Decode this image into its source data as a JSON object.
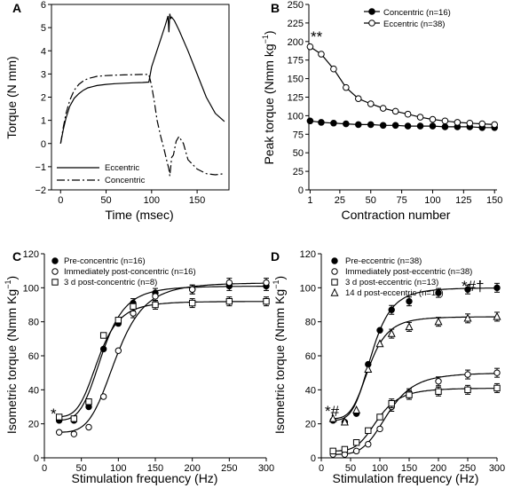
{
  "chart_data": [
    {
      "panel": "A",
      "type": "line",
      "xlabel": "Time (msec)",
      "ylabel": "Torque (N mm)",
      "xlim": [
        -10,
        185
      ],
      "ylim": [
        -2,
        6
      ],
      "xticks": [
        0,
        50,
        100,
        150
      ],
      "yticks": [
        -2,
        -1,
        0,
        1,
        2,
        3,
        4,
        5,
        6
      ],
      "legend_position": "bottom-left",
      "series": [
        {
          "name": "Eccentric",
          "style": "solid",
          "x": [
            0,
            3,
            6,
            10,
            15,
            20,
            25,
            30,
            35,
            40,
            50,
            60,
            70,
            80,
            90,
            97,
            100,
            105,
            110,
            115,
            118,
            119,
            120,
            121,
            122,
            125,
            130,
            140,
            150,
            160,
            170,
            180
          ],
          "y": [
            0,
            0.6,
            1.1,
            1.6,
            1.95,
            2.15,
            2.3,
            2.4,
            2.45,
            2.5,
            2.55,
            2.58,
            2.6,
            2.62,
            2.63,
            2.65,
            3.3,
            3.9,
            4.5,
            5.1,
            5.5,
            4.8,
            5.6,
            5.4,
            5.45,
            5.3,
            4.9,
            4.0,
            3.0,
            2.0,
            1.3,
            0.95
          ]
        },
        {
          "name": "Concentric",
          "style": "dashdot",
          "x": [
            0,
            3,
            6,
            10,
            15,
            20,
            25,
            30,
            35,
            40,
            50,
            60,
            70,
            80,
            90,
            97,
            100,
            103,
            106,
            110,
            114,
            117,
            119,
            120,
            121,
            122,
            124,
            127,
            130,
            135,
            140,
            150,
            160,
            170,
            180
          ],
          "y": [
            0,
            0.7,
            1.3,
            1.85,
            2.3,
            2.55,
            2.7,
            2.8,
            2.85,
            2.9,
            2.93,
            2.95,
            2.96,
            2.97,
            2.98,
            2.98,
            2.5,
            1.8,
            1.0,
            0.3,
            -0.3,
            -0.8,
            -1.1,
            -1.4,
            -1.0,
            -0.6,
            -0.5,
            0.1,
            0.3,
            0.0,
            -0.7,
            -1.1,
            -1.3,
            -1.35,
            -1.3
          ]
        }
      ]
    },
    {
      "panel": "B",
      "type": "line",
      "xlabel": "Contraction number",
      "ylabel": "Peak torque (Nmm kg",
      "ylabel_sup": "−1",
      "ylabel_end": ")",
      "xlim": [
        0,
        152
      ],
      "ylim": [
        0,
        250
      ],
      "xticks": [
        1,
        25,
        50,
        75,
        100,
        125,
        150
      ],
      "yticks": [
        0,
        25,
        50,
        75,
        100,
        125,
        150,
        175,
        200,
        225,
        250
      ],
      "legend_position": "top-right",
      "annotation": "**",
      "series": [
        {
          "name": "Concentric (n=16)",
          "marker": "filled-circle",
          "x": [
            1,
            10,
            20,
            30,
            40,
            50,
            60,
            70,
            80,
            90,
            100,
            110,
            120,
            130,
            140,
            150
          ],
          "y": [
            93,
            91,
            90,
            89,
            88,
            88,
            87,
            87,
            86,
            86,
            86,
            85,
            85,
            85,
            84,
            84
          ]
        },
        {
          "name": "Eccentric (n=38)",
          "marker": "open-circle",
          "x": [
            1,
            10,
            20,
            30,
            40,
            50,
            60,
            70,
            80,
            90,
            100,
            110,
            120,
            130,
            140,
            150
          ],
          "y": [
            193,
            183,
            163,
            138,
            123,
            116,
            110,
            106,
            102,
            98,
            95,
            93,
            91,
            90,
            89,
            88
          ]
        }
      ]
    },
    {
      "panel": "C",
      "type": "scatter",
      "xlabel": "Stimulation frequency (Hz)",
      "ylabel": "Isometric torque (Nmm Kg",
      "ylabel_sup": "−1",
      "ylabel_end": ")",
      "xlim": [
        0,
        300
      ],
      "ylim": [
        0,
        120
      ],
      "xticks": [
        0,
        50,
        100,
        150,
        200,
        250,
        300
      ],
      "yticks": [
        0,
        20,
        40,
        60,
        80,
        100,
        120
      ],
      "legend_position": "top-left",
      "annotation": "*",
      "series": [
        {
          "name": "Pre-concentric (n=16)",
          "marker": "filled-circle",
          "x": [
            20,
            40,
            60,
            80,
            100,
            120,
            150,
            200,
            250,
            300
          ],
          "y": [
            22,
            22,
            30,
            64,
            79,
            91,
            97,
            99,
            101,
            101
          ]
        },
        {
          "name": "Immediately post-concentric (n=16)",
          "marker": "open-circle",
          "x": [
            20,
            40,
            60,
            80,
            100,
            120,
            150,
            200,
            250,
            300
          ],
          "y": [
            15,
            14,
            18,
            36,
            63,
            85,
            95,
            99,
            103,
            103
          ]
        },
        {
          "name": "3 d post-concentric (n=8)",
          "marker": "open-square",
          "x": [
            20,
            40,
            60,
            80,
            100,
            120,
            150,
            200,
            250,
            300
          ],
          "y": [
            24,
            23,
            33,
            72,
            81,
            89,
            90,
            91,
            92,
            92
          ]
        }
      ]
    },
    {
      "panel": "D",
      "type": "scatter",
      "xlabel": "Stimulation frequency (Hz)",
      "ylabel": "Isometric torque (Nmm Kg",
      "ylabel_sup": "−1",
      "ylabel_end": ")",
      "xlim": [
        0,
        300
      ],
      "ylim": [
        0,
        120
      ],
      "xticks": [
        0,
        50,
        100,
        150,
        200,
        250,
        300
      ],
      "yticks": [
        0,
        20,
        40,
        60,
        80,
        100,
        120
      ],
      "legend_position": "top-left",
      "annotation_low": "*#",
      "annotation_high": "*#†",
      "series": [
        {
          "name": "Pre-eccentric (n=38)",
          "marker": "filled-circle",
          "x": [
            20,
            40,
            60,
            80,
            100,
            120,
            150,
            200,
            250,
            300
          ],
          "y": [
            22,
            21,
            26,
            55,
            75,
            87,
            92,
            97,
            99,
            100
          ]
        },
        {
          "name": "Immediately post-eccentric (n=38)",
          "marker": "open-circle",
          "x": [
            20,
            40,
            60,
            80,
            100,
            120,
            150,
            200,
            250,
            300
          ],
          "y": [
            2,
            2,
            4,
            8,
            17,
            30,
            38,
            45,
            49,
            50
          ]
        },
        {
          "name": "3 d post-eccentric (n=13)",
          "marker": "open-square",
          "x": [
            20,
            40,
            60,
            80,
            100,
            120,
            150,
            200,
            250,
            300
          ],
          "y": [
            4,
            5,
            9,
            16,
            24,
            32,
            37,
            39,
            40,
            41
          ]
        },
        {
          "name": "14 d post-eccentric (n=10)",
          "marker": "open-triangle",
          "x": [
            20,
            40,
            60,
            80,
            100,
            120,
            150,
            200,
            250,
            300
          ],
          "y": [
            23,
            21,
            28,
            52,
            67,
            73,
            77,
            80,
            82,
            83
          ]
        }
      ]
    }
  ]
}
